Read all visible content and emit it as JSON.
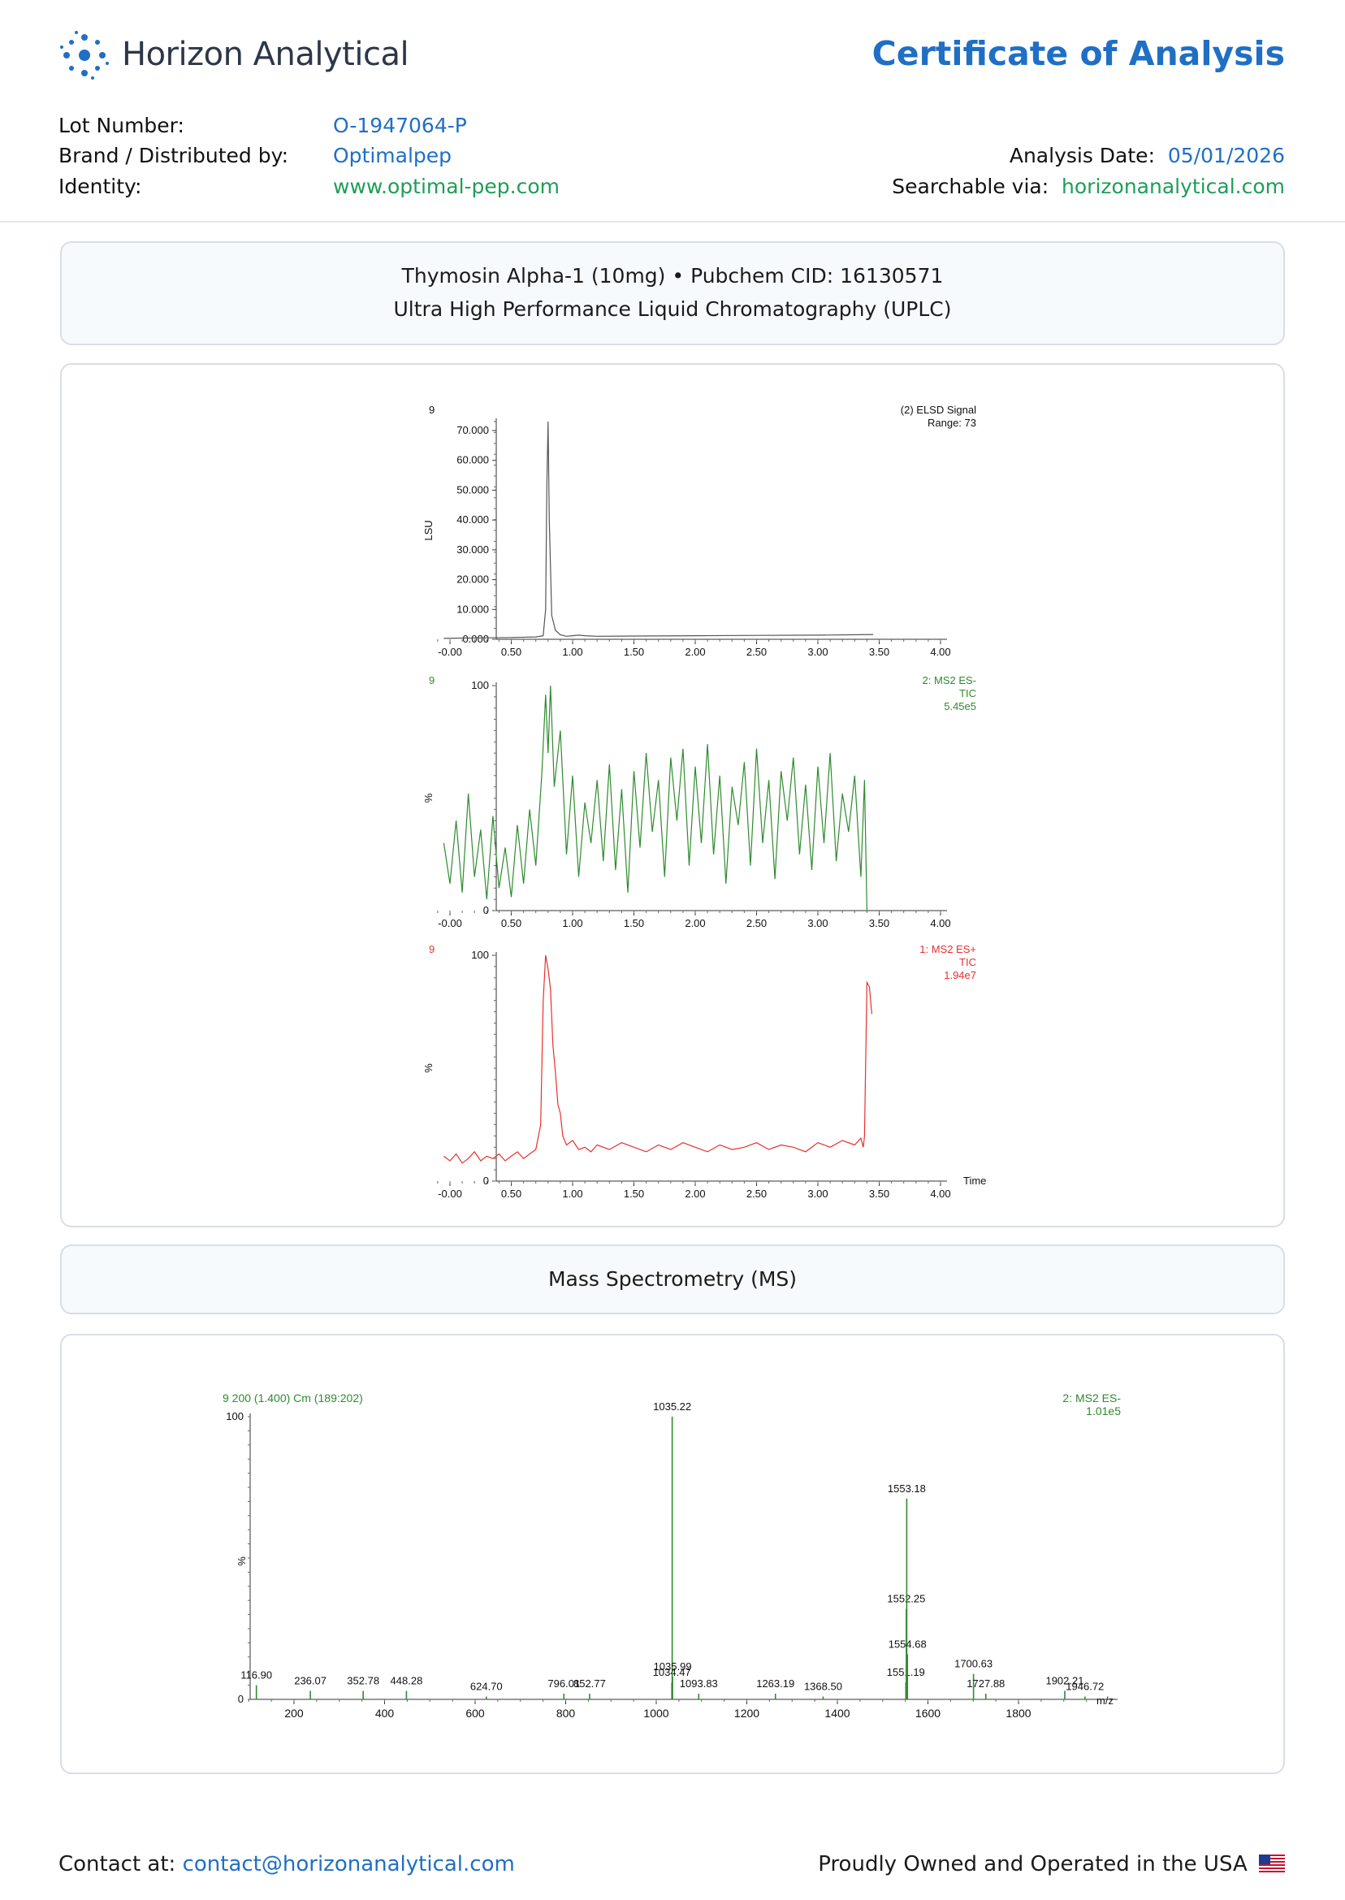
{
  "header": {
    "company": "Horizon Analytical",
    "doc_title": "Certificate of Analysis",
    "lot_label": "Lot Number:",
    "lot_value": "O-1947064-P",
    "brand_label": "Brand / Distributed by:",
    "brand_value": "Optimalpep",
    "identity_label": "Identity:",
    "identity_value": "www.optimal-pep.com",
    "date_label": "Analysis Date:",
    "date_value": "05/01/2026",
    "search_label": "Searchable via:",
    "search_value": "horizonanalytical.com"
  },
  "uplc_panel": {
    "line1": "Thymosin Alpha-1 (10mg) • Pubchem CID: 16130571",
    "line2": "Ultra High Performance Liquid Chromatography (UPLC)"
  },
  "ms_panel": {
    "title": "Mass Spectrometry (MS)"
  },
  "footer": {
    "contact_label": "Contact at:",
    "contact_email": "contact@horizonanalytical.com",
    "made_in": "Proudly Owned and Operated in the USA"
  },
  "colors": {
    "accent_blue": "#1f6fc5",
    "accent_green": "#1e9e57",
    "trace_gray": "#555555",
    "trace_green": "#2e8b2e",
    "trace_red": "#e8302e"
  },
  "chart_data": [
    {
      "type": "line",
      "id": "elsd",
      "corner_label": "9",
      "legend": [
        "(2) ELSD Signal",
        "Range: 73"
      ],
      "ylabel": "LSU",
      "yticks": [
        "0.000",
        "10.000",
        "20.000",
        "30.000",
        "40.000",
        "50.000",
        "60.000",
        "70.000"
      ],
      "ylim": [
        0,
        73
      ],
      "xticks": [
        "-0.00",
        "0.50",
        "1.00",
        "1.50",
        "2.00",
        "2.50",
        "3.00",
        "3.50",
        "4.00"
      ],
      "xlim": [
        -0.1,
        4.0
      ],
      "series": [
        {
          "x": [
            -0.05,
            0.1,
            0.3,
            0.5,
            0.7,
            0.76,
            0.78,
            0.79,
            0.8,
            0.81,
            0.83,
            0.86,
            0.9,
            0.95,
            1.0,
            1.05,
            1.1,
            1.2,
            1.5,
            2.0,
            2.5,
            3.0,
            3.45
          ],
          "y": [
            0.3,
            0.4,
            0.5,
            0.6,
            0.8,
            1.2,
            10,
            52,
            73,
            40,
            8,
            3,
            1.5,
            1.0,
            1.2,
            1.4,
            1.2,
            1.0,
            1.1,
            1.2,
            1.3,
            1.4,
            1.6
          ]
        }
      ]
    },
    {
      "type": "line",
      "id": "ms2_es_minus",
      "corner_label": "9",
      "legend": [
        "2: MS2 ES-",
        "TIC",
        "5.45e5"
      ],
      "ylabel": "%",
      "yticks": [
        "0",
        "100"
      ],
      "ylim": [
        0,
        100
      ],
      "xticks": [
        "-0.00",
        "0.50",
        "1.00",
        "1.50",
        "2.00",
        "2.50",
        "3.00",
        "3.50",
        "4.00"
      ],
      "xlim": [
        -0.1,
        4.0
      ],
      "series": [
        {
          "x": [
            -0.05,
            0.0,
            0.05,
            0.1,
            0.15,
            0.2,
            0.25,
            0.3,
            0.35,
            0.4,
            0.45,
            0.5,
            0.55,
            0.6,
            0.65,
            0.7,
            0.75,
            0.78,
            0.8,
            0.82,
            0.85,
            0.9,
            0.95,
            1.0,
            1.05,
            1.1,
            1.15,
            1.2,
            1.25,
            1.3,
            1.35,
            1.4,
            1.45,
            1.5,
            1.55,
            1.6,
            1.65,
            1.7,
            1.75,
            1.8,
            1.85,
            1.9,
            1.95,
            2.0,
            2.05,
            2.1,
            2.15,
            2.2,
            2.25,
            2.3,
            2.35,
            2.4,
            2.45,
            2.5,
            2.55,
            2.6,
            2.65,
            2.7,
            2.75,
            2.8,
            2.85,
            2.9,
            2.95,
            3.0,
            3.05,
            3.1,
            3.15,
            3.2,
            3.25,
            3.3,
            3.35,
            3.38,
            3.4
          ],
          "y": [
            30,
            12,
            40,
            8,
            52,
            15,
            36,
            5,
            42,
            10,
            28,
            6,
            38,
            12,
            45,
            20,
            62,
            96,
            70,
            100,
            55,
            80,
            25,
            60,
            15,
            48,
            30,
            58,
            22,
            65,
            18,
            54,
            8,
            62,
            28,
            70,
            35,
            58,
            15,
            68,
            40,
            72,
            20,
            64,
            30,
            74,
            25,
            60,
            12,
            55,
            38,
            66,
            20,
            72,
            30,
            58,
            14,
            62,
            40,
            68,
            25,
            56,
            18,
            64,
            30,
            70,
            22,
            52,
            35,
            60,
            15,
            58,
            0
          ]
        }
      ]
    },
    {
      "type": "line",
      "id": "ms2_es_plus",
      "corner_label": "9",
      "legend": [
        "1: MS2 ES+",
        "TIC",
        "1.94e7"
      ],
      "ylabel": "%",
      "xlabel": "Time",
      "yticks": [
        "0",
        "100"
      ],
      "ylim": [
        0,
        100
      ],
      "xticks": [
        "-0.00",
        "0.50",
        "1.00",
        "1.50",
        "2.00",
        "2.50",
        "3.00",
        "3.50",
        "4.00"
      ],
      "xlim": [
        -0.1,
        4.0
      ],
      "series": [
        {
          "x": [
            -0.05,
            0.0,
            0.05,
            0.1,
            0.15,
            0.2,
            0.25,
            0.3,
            0.35,
            0.4,
            0.45,
            0.5,
            0.55,
            0.6,
            0.65,
            0.7,
            0.74,
            0.76,
            0.78,
            0.8,
            0.82,
            0.84,
            0.86,
            0.88,
            0.9,
            0.92,
            0.95,
            1.0,
            1.05,
            1.1,
            1.15,
            1.2,
            1.3,
            1.4,
            1.5,
            1.6,
            1.7,
            1.8,
            1.9,
            2.0,
            2.1,
            2.2,
            2.3,
            2.4,
            2.5,
            2.6,
            2.7,
            2.8,
            2.9,
            3.0,
            3.1,
            3.2,
            3.3,
            3.35,
            3.37,
            3.38,
            3.4,
            3.42,
            3.44
          ],
          "y": [
            11,
            9,
            12,
            8,
            10,
            13,
            9,
            11,
            10,
            12,
            9,
            11,
            13,
            10,
            12,
            14,
            25,
            80,
            100,
            94,
            85,
            60,
            48,
            34,
            30,
            20,
            16,
            18,
            14,
            15,
            13,
            16,
            14,
            17,
            15,
            13,
            16,
            14,
            17,
            15,
            13,
            16,
            14,
            15,
            17,
            14,
            16,
            15,
            13,
            17,
            15,
            18,
            16,
            19,
            15,
            20,
            88,
            86,
            74
          ]
        }
      ]
    },
    {
      "type": "bar",
      "id": "mass_spectrum",
      "title": "9 200 (1.400) Cm (189:202)",
      "legend": [
        "2: MS2 ES-",
        "1.01e5"
      ],
      "ylabel": "%",
      "xlabel": "m/z",
      "yticks": [
        "0",
        "100"
      ],
      "ylim": [
        0,
        100
      ],
      "xticks": [
        "200",
        "400",
        "600",
        "800",
        "1000",
        "1200",
        "1400",
        "1600",
        "1800"
      ],
      "xlim": [
        100,
        2000
      ],
      "peaks": [
        {
          "mz": 116.9,
          "y": 5,
          "label": "116.90"
        },
        {
          "mz": 236.07,
          "y": 3,
          "label": "236.07"
        },
        {
          "mz": 352.78,
          "y": 3,
          "label": "352.78"
        },
        {
          "mz": 448.28,
          "y": 3,
          "label": "448.28"
        },
        {
          "mz": 624.7,
          "y": 1,
          "label": "624.70"
        },
        {
          "mz": 796.01,
          "y": 2,
          "label": "796.01"
        },
        {
          "mz": 852.77,
          "y": 2,
          "label": "852.77"
        },
        {
          "mz": 1034.47,
          "y": 6,
          "label": "1034.47"
        },
        {
          "mz": 1035.22,
          "y": 100,
          "label": "1035.22"
        },
        {
          "mz": 1035.99,
          "y": 8,
          "label": "1035.99"
        },
        {
          "mz": 1093.83,
          "y": 2,
          "label": "1093.83"
        },
        {
          "mz": 1263.19,
          "y": 2,
          "label": "1263.19"
        },
        {
          "mz": 1368.5,
          "y": 1,
          "label": "1368.50"
        },
        {
          "mz": 1551.19,
          "y": 6,
          "label": "1551.19"
        },
        {
          "mz": 1552.25,
          "y": 32,
          "label": "1552.25"
        },
        {
          "mz": 1553.18,
          "y": 71,
          "label": "1553.18"
        },
        {
          "mz": 1554.68,
          "y": 16,
          "label": "1554.68"
        },
        {
          "mz": 1700.63,
          "y": 9,
          "label": "1700.63"
        },
        {
          "mz": 1727.88,
          "y": 2,
          "label": "1727.88"
        },
        {
          "mz": 1902.21,
          "y": 3,
          "label": "1902.21"
        },
        {
          "mz": 1946.72,
          "y": 1,
          "label": "1946.72"
        }
      ]
    }
  ]
}
